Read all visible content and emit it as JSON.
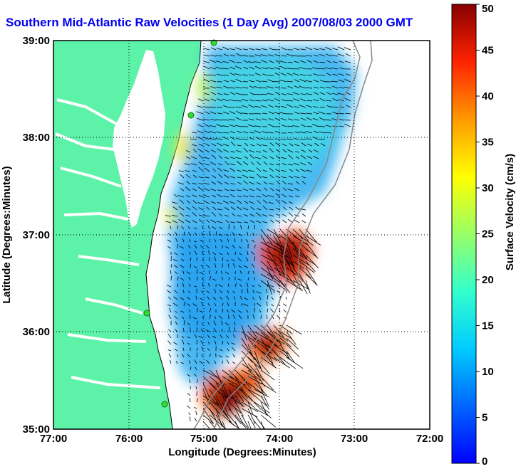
{
  "title": "Southern Mid-Atlantic Raw Velocities (1 Day Avg) 2007/08/03 2000 GMT",
  "chart_data": {
    "type": "heatmap",
    "xlabel": "Longitude (Degrees:Minutes)",
    "ylabel": "Latitude (Degrees:Minutes)",
    "x_ticks": [
      "77:00",
      "76:00",
      "75:00",
      "74:00",
      "73:00",
      "72:00"
    ],
    "y_ticks": [
      "39:00",
      "38:00",
      "37:00",
      "36:00",
      "35:00"
    ],
    "xlim": [
      -77,
      -72
    ],
    "ylim": [
      35,
      39
    ],
    "grid": true,
    "colorbar": {
      "label": "Surface Velocity (cm/s)",
      "range": [
        0,
        50
      ],
      "ticks": [
        "0",
        "5",
        "10",
        "15",
        "20",
        "25",
        "30",
        "35",
        "40",
        "45",
        "50"
      ],
      "colormap": "jet"
    },
    "station_markers_lat": [
      38.97,
      38.22,
      36.18,
      35.27
    ],
    "region_velocity_cm_s": {
      "north_offshore": 12,
      "central": 8,
      "south_central": 6,
      "coastal_maryland": 22,
      "hotspot_37N": 45,
      "hotspot_36N": 40,
      "hotspot_35N": 45
    }
  },
  "colors": {
    "land": "#5cf2a8",
    "water": "#ffffff",
    "title": "#0000ee",
    "marker": "#33dd33"
  }
}
